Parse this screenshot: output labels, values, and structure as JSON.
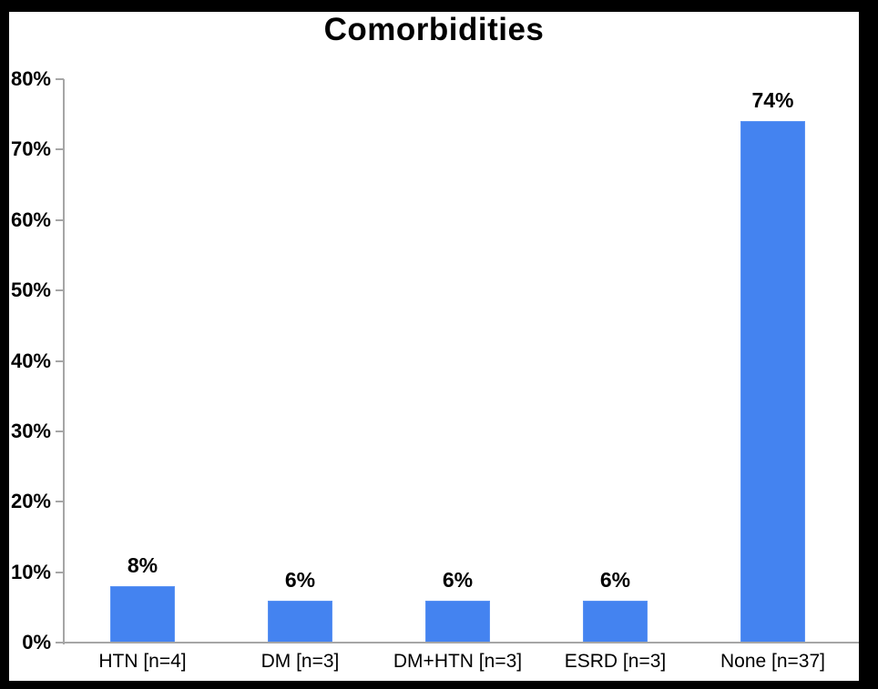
{
  "title": "Comorbidities",
  "colors": {
    "bar": "#4483f0",
    "bar_edge": "#5b93f3",
    "axis": "#a6a6a6",
    "text": "#000000",
    "frame": "#000000",
    "background": "#ffffff"
  },
  "chart_data": {
    "type": "bar",
    "title": "Comorbidities",
    "categories": [
      "HTN [n=4]",
      "DM [n=3]",
      "DM+HTN [n=3]",
      "ESRD [n=3]",
      "None [n=37]"
    ],
    "values": [
      8,
      6,
      6,
      6,
      74
    ],
    "value_labels": [
      "8%",
      "6%",
      "6%",
      "6%",
      "74%"
    ],
    "xlabel": "",
    "ylabel": "",
    "ylim": [
      0,
      80
    ],
    "ytick_step": 10,
    "ytick_labels": [
      "0%",
      "10%",
      "20%",
      "30%",
      "40%",
      "50%",
      "60%",
      "70%",
      "80%"
    ],
    "grid": false,
    "legend": "none",
    "bar_color": "#4483f0"
  }
}
